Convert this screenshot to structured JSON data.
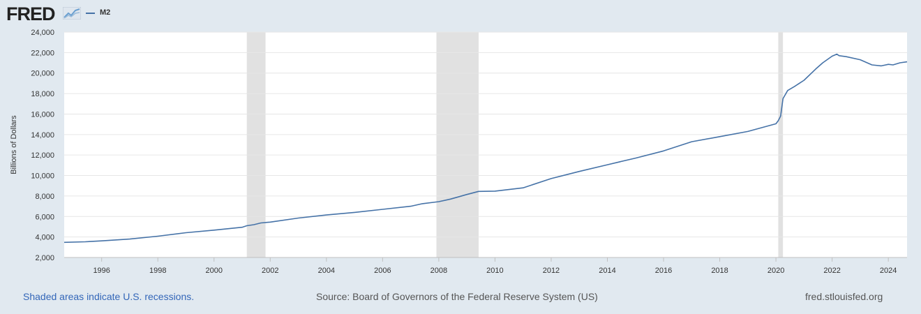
{
  "header": {
    "logo_text": "FRED",
    "logo_icon": "trend-graph-icon",
    "legend_label": "M2",
    "legend_color": "#4572a7"
  },
  "chart_data": {
    "type": "line",
    "title": "",
    "xlabel": "",
    "ylabel": "Billions of Dollars",
    "xlim": [
      "1994-09-01",
      "2024-09-01"
    ],
    "ylim": [
      2000,
      24000
    ],
    "yticks": [
      "2,000",
      "4,000",
      "6,000",
      "8,000",
      "10,000",
      "12,000",
      "14,000",
      "16,000",
      "18,000",
      "20,000",
      "22,000",
      "24,000"
    ],
    "xticks": [
      "1996",
      "1998",
      "2000",
      "2002",
      "2004",
      "2006",
      "2008",
      "2010",
      "2012",
      "2014",
      "2016",
      "2018",
      "2020",
      "2022",
      "2024"
    ],
    "grid": true,
    "recessions": [
      {
        "start": "2001-03-01",
        "end": "2001-11-01"
      },
      {
        "start": "2007-12-01",
        "end": "2009-06-01"
      },
      {
        "start": "2020-02-01",
        "end": "2020-04-01"
      }
    ],
    "series": [
      {
        "name": "M2",
        "color": "#4572a7",
        "x": [
          "1994-09-01",
          "1995-06-01",
          "1996-01-01",
          "1997-01-01",
          "1998-01-01",
          "1999-01-01",
          "2000-01-01",
          "2001-01-01",
          "2001-03-01",
          "2001-06-01",
          "2001-09-01",
          "2002-01-01",
          "2003-01-01",
          "2004-01-01",
          "2005-01-01",
          "2006-01-01",
          "2007-01-01",
          "2007-06-01",
          "2008-01-01",
          "2008-06-01",
          "2009-01-01",
          "2009-06-01",
          "2010-01-01",
          "2011-01-01",
          "2012-01-01",
          "2013-01-01",
          "2014-01-01",
          "2015-01-01",
          "2016-01-01",
          "2017-01-01",
          "2018-01-01",
          "2019-01-01",
          "2020-01-01",
          "2020-02-01",
          "2020-03-01",
          "2020-04-01",
          "2020-06-01",
          "2020-09-01",
          "2021-01-01",
          "2021-06-01",
          "2021-09-01",
          "2022-01-01",
          "2022-03-01",
          "2022-04-01",
          "2022-07-01",
          "2023-01-01",
          "2023-06-01",
          "2023-10-01",
          "2024-01-01",
          "2024-03-01",
          "2024-06-01",
          "2024-09-01"
        ],
        "values": [
          3480,
          3530,
          3620,
          3800,
          4080,
          4420,
          4670,
          4950,
          5100,
          5200,
          5370,
          5450,
          5850,
          6150,
          6400,
          6700,
          7000,
          7250,
          7450,
          7700,
          8150,
          8450,
          8480,
          8800,
          9700,
          10400,
          11050,
          11700,
          12400,
          13300,
          13800,
          14300,
          15050,
          15350,
          15800,
          17500,
          18300,
          18700,
          19300,
          20400,
          21000,
          21650,
          21850,
          21700,
          21600,
          21300,
          20800,
          20700,
          20850,
          20800,
          21000,
          21100
        ]
      }
    ]
  },
  "footer": {
    "note": "Shaded areas indicate U.S. recessions.",
    "source": "Source: Board of Governors of the Federal Reserve System (US)",
    "url": "fred.stlouisfed.org"
  }
}
